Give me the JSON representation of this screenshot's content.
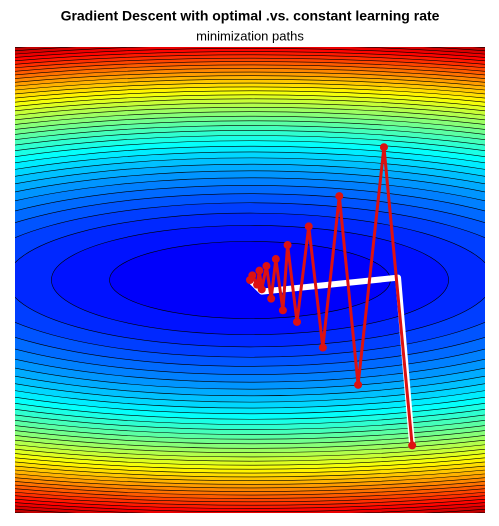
{
  "chart_data": {
    "type": "line",
    "title": "Gradient Descent with optimal .vs. constant learning rate",
    "subtitle": "minimization paths",
    "xlim": [
      -1,
      1
    ],
    "ylim": [
      -1,
      1
    ],
    "series": [
      {
        "color": "#ffffff",
        "markers": false,
        "x": [
          0.69,
          0.63,
          0.05,
          0
        ],
        "values": [
          -0.71,
          0.01,
          -0.05,
          0
        ]
      },
      {
        "color": "#dd1111",
        "markers": true,
        "x": [
          0.69,
          0.57,
          0.46,
          0.38,
          0.31,
          0.25,
          0.2,
          0.16,
          0.14,
          0.11,
          0.09,
          0.07,
          0.05,
          0.04,
          0.03,
          0.01,
          0
        ],
        "values": [
          -0.71,
          0.57,
          -0.45,
          0.36,
          -0.29,
          0.23,
          -0.18,
          0.15,
          -0.13,
          0.09,
          -0.08,
          0.06,
          -0.04,
          0.04,
          -0.02,
          0.02,
          0
        ]
      }
    ]
  }
}
